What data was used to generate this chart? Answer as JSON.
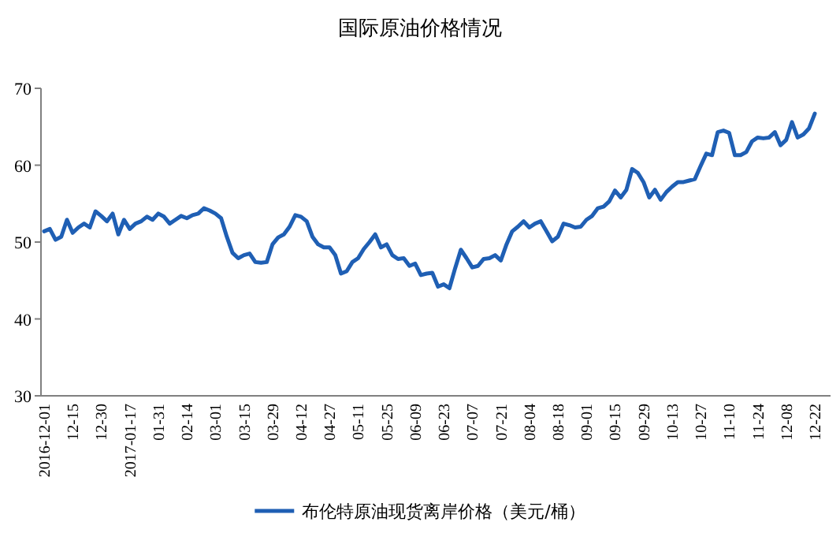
{
  "chart_data": {
    "type": "line",
    "title": "国际原油价格情况",
    "categories": [
      "2016-12-01",
      null,
      null,
      null,
      null,
      "12-15",
      null,
      null,
      null,
      null,
      "12-30",
      null,
      null,
      null,
      null,
      "2017-01-17",
      null,
      null,
      null,
      null,
      "01-31",
      null,
      null,
      null,
      null,
      "02-14",
      null,
      null,
      null,
      null,
      "03-01",
      null,
      null,
      null,
      null,
      "03-15",
      null,
      null,
      null,
      null,
      "03-29",
      null,
      null,
      null,
      null,
      "04-12",
      null,
      null,
      null,
      null,
      "04-27",
      null,
      null,
      null,
      null,
      "05-11",
      null,
      null,
      null,
      null,
      "05-25",
      null,
      null,
      null,
      null,
      "06-09",
      null,
      null,
      null,
      null,
      "06-23",
      null,
      null,
      null,
      null,
      "07-07",
      null,
      null,
      null,
      null,
      "07-21",
      null,
      null,
      null,
      null,
      "08-04",
      null,
      null,
      null,
      null,
      "08-18",
      null,
      null,
      null,
      null,
      "09-01",
      null,
      null,
      null,
      null,
      "09-15",
      null,
      null,
      null,
      null,
      "09-29",
      null,
      null,
      null,
      null,
      "10-13",
      null,
      null,
      null,
      null,
      "10-27",
      null,
      null,
      null,
      null,
      "11-10",
      null,
      null,
      null,
      null,
      "11-24",
      null,
      null,
      null,
      null,
      "12-08",
      null,
      null,
      null,
      null,
      "12-22"
    ],
    "series": [
      {
        "name": "布伦特原油现货离岸价格（美元/桶）",
        "color": "#1f5fb4",
        "values": [
          51.4,
          51.7,
          50.3,
          50.7,
          52.9,
          51.2,
          51.9,
          52.4,
          51.9,
          54.0,
          53.4,
          52.7,
          53.7,
          51.0,
          52.9,
          51.7,
          52.4,
          52.7,
          53.3,
          52.9,
          53.7,
          53.3,
          52.4,
          52.9,
          53.4,
          53.1,
          53.5,
          53.7,
          54.4,
          54.1,
          53.7,
          53.1,
          50.7,
          48.6,
          47.9,
          48.3,
          48.5,
          47.4,
          47.3,
          47.4,
          49.7,
          50.6,
          51.0,
          52.0,
          53.5,
          53.3,
          52.7,
          50.7,
          49.7,
          49.3,
          49.3,
          48.3,
          45.9,
          46.2,
          47.4,
          47.9,
          49.1,
          50.0,
          51.0,
          49.3,
          49.7,
          48.3,
          47.8,
          47.9,
          46.9,
          47.2,
          45.7,
          45.9,
          46.0,
          44.2,
          44.5,
          44.0,
          46.6,
          49.0,
          47.9,
          46.7,
          46.9,
          47.8,
          47.9,
          48.3,
          47.6,
          49.7,
          51.4,
          52.0,
          52.7,
          51.9,
          52.4,
          52.7,
          51.4,
          50.1,
          50.7,
          52.4,
          52.2,
          51.9,
          52.0,
          52.9,
          53.4,
          54.4,
          54.6,
          55.3,
          56.7,
          55.8,
          56.8,
          59.5,
          59.0,
          57.8,
          55.8,
          56.8,
          55.5,
          56.5,
          57.2,
          57.8,
          57.8,
          58.0,
          58.2,
          59.9,
          61.5,
          61.3,
          64.3,
          64.5,
          64.2,
          61.3,
          61.3,
          61.7,
          63.1,
          63.6,
          63.5,
          63.6,
          64.3,
          62.6,
          63.3,
          65.6,
          63.6,
          64.0,
          64.8,
          66.7
        ]
      }
    ],
    "ylim": [
      30,
      70
    ],
    "yticks": [
      30,
      40,
      50,
      60,
      70
    ],
    "legend": "bottom"
  }
}
